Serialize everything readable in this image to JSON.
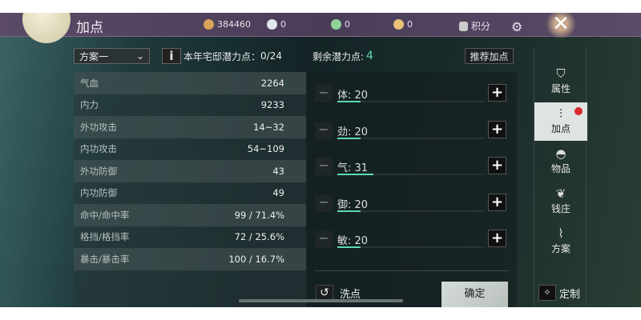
{
  "header": {
    "title": "加点",
    "currencies": [
      {
        "icon": "coin-icon",
        "value": "384460",
        "color": "#d9a35a"
      },
      {
        "icon": "silver-ingot-icon",
        "value": "0",
        "color": "#dfe6ec"
      },
      {
        "icon": "jade-icon",
        "value": "0",
        "color": "#8fd39a"
      },
      {
        "icon": "gold-ingot-icon",
        "value": "0",
        "color": "#e7c277"
      }
    ],
    "points_label": "积分"
  },
  "toolbar": {
    "plan_select": "方案一",
    "estate_points_label": "本年宅邸潜力点：",
    "estate_points_value": "0/24",
    "remaining_label": "剩余潜力点:",
    "remaining_value": "4",
    "recommend_label": "推荐加点"
  },
  "stats": [
    {
      "label": "气血",
      "value": "2264"
    },
    {
      "label": "内力",
      "value": "9233"
    },
    {
      "label": "外功攻击",
      "value": "14~32"
    },
    {
      "label": "内功攻击",
      "value": "54~109"
    },
    {
      "label": "外功防御",
      "value": "43"
    },
    {
      "label": "内功防御",
      "value": "49"
    },
    {
      "label": "命中/命中率",
      "value": "99 / 71.4%"
    },
    {
      "label": "格挡/格挡率",
      "value": "72 / 25.6%"
    },
    {
      "label": "暴击/暴击率",
      "value": "100 / 16.7%"
    }
  ],
  "attributes": [
    {
      "label": "体",
      "value": 20
    },
    {
      "label": "劲",
      "value": 20
    },
    {
      "label": "气",
      "value": 31
    },
    {
      "label": "御",
      "value": 20
    },
    {
      "label": "敏",
      "value": 20
    }
  ],
  "attribute_bar_max": 128,
  "actions": {
    "reset_label": "洗点",
    "confirm_label": "确定"
  },
  "sidebar": {
    "tabs": [
      {
        "label": "属性",
        "icon": "attributes-icon",
        "active": false
      },
      {
        "label": "加点",
        "icon": "sliders-icon",
        "active": true,
        "badge": true
      },
      {
        "label": "物品",
        "icon": "bag-icon",
        "active": false
      },
      {
        "label": "钱庄",
        "icon": "money-bag-icon",
        "active": false
      },
      {
        "label": "方案",
        "icon": "scroll-icon",
        "active": false
      }
    ],
    "custom_label": "定制"
  },
  "colors": {
    "accent": "#5ed6b6",
    "badge": "#d8262e",
    "remaining": "#5ed6b6"
  }
}
